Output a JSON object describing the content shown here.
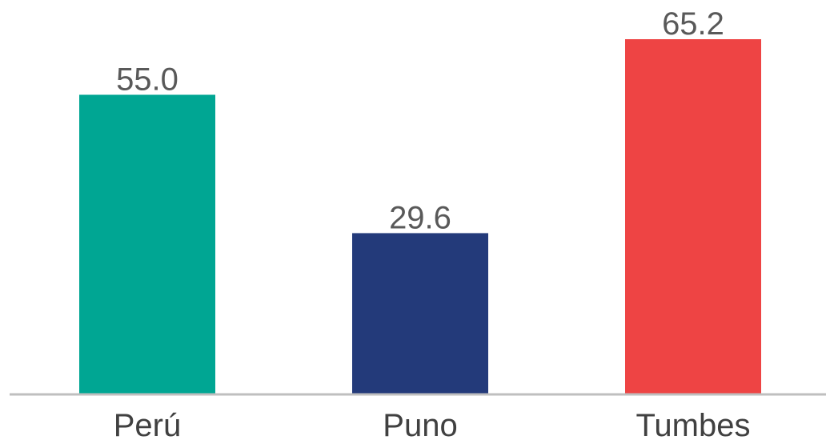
{
  "chart_data": {
    "type": "bar",
    "categories": [
      "Perú",
      "Puno",
      "Tumbes"
    ],
    "values": [
      55.0,
      29.6,
      65.2
    ],
    "value_labels": [
      "55.0",
      "29.6",
      "65.2"
    ],
    "colors": [
      "#00A693",
      "#233A7A",
      "#EE4444"
    ],
    "axis_color": "#BFBFBF",
    "title": "",
    "xlabel": "",
    "ylabel": "",
    "ylim": [
      0,
      65.2
    ],
    "grid": false,
    "legend": "none"
  }
}
